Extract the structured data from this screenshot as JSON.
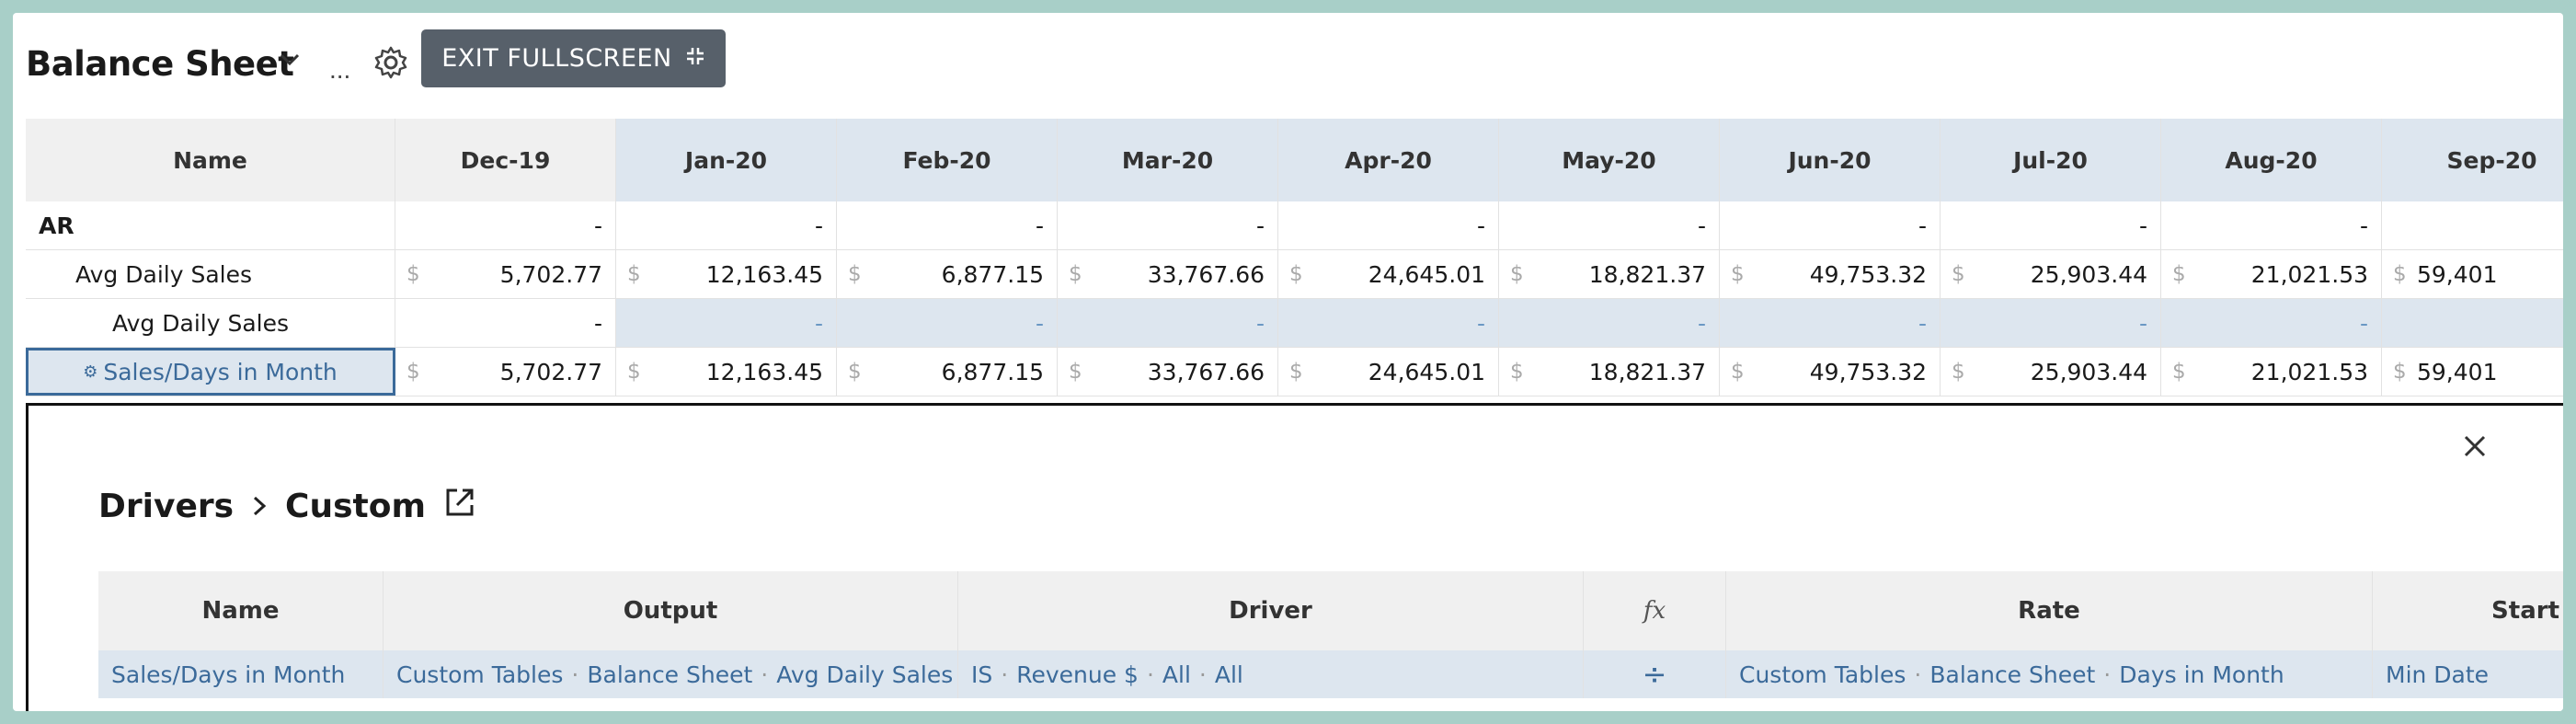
{
  "header": {
    "title": "Balance Sheet",
    "more_label": "...",
    "exit_label": "EXIT FULLSCREEN"
  },
  "grid": {
    "columns": [
      "Name",
      "Dec-19",
      "Jan-20",
      "Feb-20",
      "Mar-20",
      "Apr-20",
      "May-20",
      "Jun-20",
      "Jul-20",
      "Aug-20",
      "Sep-20"
    ],
    "rows": [
      {
        "name": "AR",
        "currency": "",
        "values": [
          "-",
          "-",
          "-",
          "-",
          "-",
          "-",
          "-",
          "-",
          "-",
          ""
        ]
      },
      {
        "name": "Avg Daily Sales",
        "currency": "$",
        "values": [
          "5,702.77",
          "12,163.45",
          "6,877.15",
          "33,767.66",
          "24,645.01",
          "18,821.37",
          "49,753.32",
          "25,903.44",
          "21,021.53",
          "59,401"
        ]
      },
      {
        "name": "Avg Daily Sales",
        "currency": "",
        "values": [
          "-",
          "-",
          "-",
          "-",
          "-",
          "-",
          "-",
          "-",
          "-",
          ""
        ]
      },
      {
        "name": "Sales/Days in Month",
        "currency": "$",
        "values": [
          "5,702.77",
          "12,163.45",
          "6,877.15",
          "33,767.66",
          "24,645.01",
          "18,821.37",
          "49,753.32",
          "25,903.44",
          "21,021.53",
          "59,401"
        ]
      }
    ]
  },
  "drivers": {
    "crumb_root": "Drivers",
    "crumb_current": "Custom",
    "columns": [
      "Name",
      "Output",
      "Driver",
      "fx",
      "Rate",
      "Start"
    ],
    "row": {
      "name": "Sales/Days in Month",
      "output": [
        "Custom Tables",
        "Balance Sheet",
        "Avg Daily Sales"
      ],
      "driver": [
        "IS",
        "Revenue $",
        "All",
        "All"
      ],
      "operator": "÷",
      "rate": [
        "Custom Tables",
        "Balance Sheet",
        "Days in Month"
      ],
      "start": "Min Date"
    }
  },
  "colors": {
    "accent": "#3b6a9a",
    "shaded": "#dde6ef",
    "button": "#57606a",
    "frame": "#a8cfc8"
  }
}
